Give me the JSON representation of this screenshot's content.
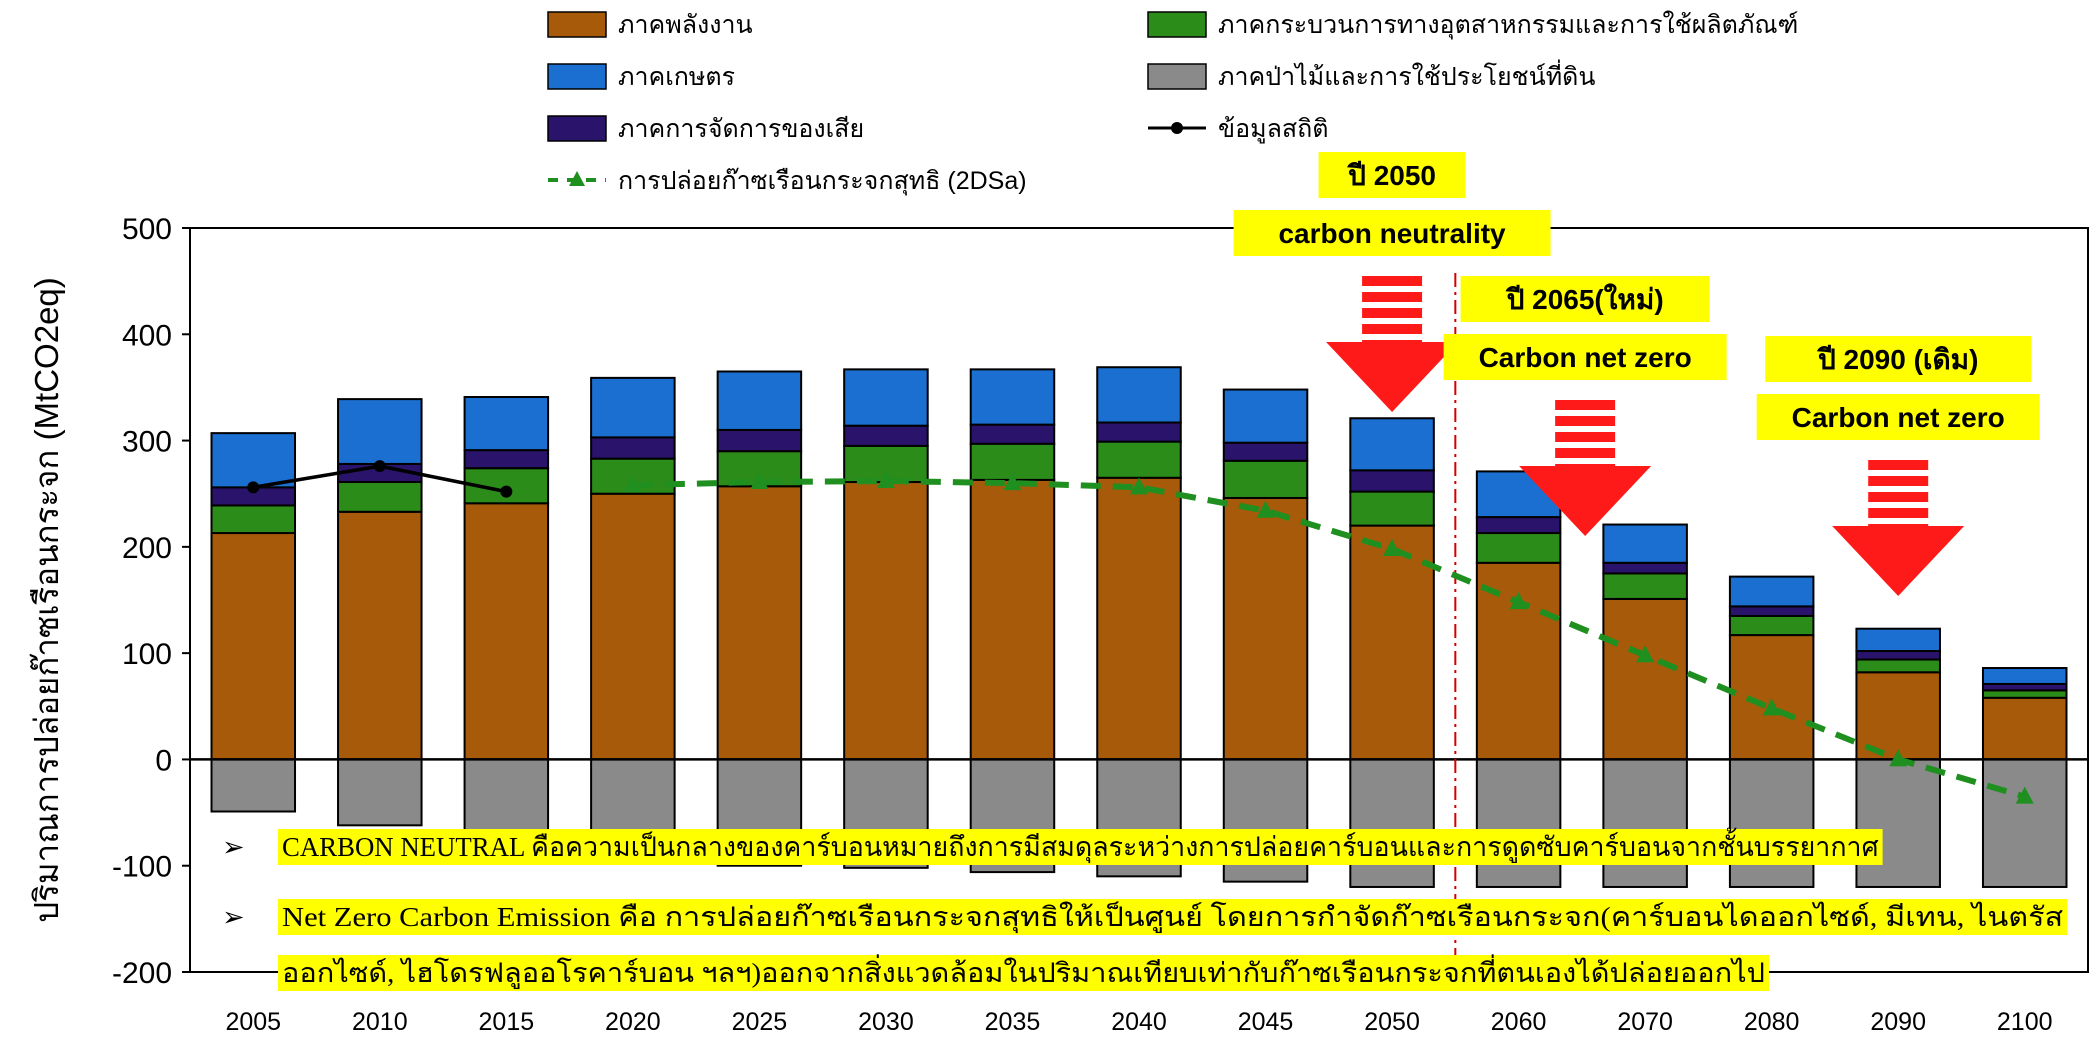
{
  "chart_data": {
    "type": "bar",
    "ylabel": "ปริมาณการปล่อยก๊าซเรือนกระจก (MtCO2eq)",
    "ylim": [
      -200,
      500
    ],
    "yticks": [
      500,
      400,
      300,
      200,
      100,
      0,
      -100,
      -200
    ],
    "categories": [
      "2005",
      "2010",
      "2015",
      "2020",
      "2025",
      "2030",
      "2035",
      "2040",
      "2045",
      "2050",
      "2060",
      "2070",
      "2080",
      "2090",
      "2100"
    ],
    "series": [
      {
        "name": "ภาคพลังงาน",
        "color": "#a65a0a",
        "values": [
          213,
          233,
          241,
          250,
          257,
          261,
          263,
          265,
          246,
          220,
          185,
          151,
          117,
          82,
          58
        ]
      },
      {
        "name": "ภาคกระบวนการทางอุตสาหกรรมและการใช้ผลิตภัณฑ์",
        "color": "#2c8c1a",
        "values": [
          26,
          28,
          33,
          33,
          33,
          34,
          34,
          34,
          35,
          32,
          28,
          24,
          18,
          12,
          7
        ]
      },
      {
        "name": "ภาคการจัดการของเสีย",
        "color": "#2a136b",
        "values": [
          17,
          17,
          17,
          20,
          20,
          19,
          18,
          18,
          17,
          20,
          15,
          10,
          9,
          8,
          6
        ]
      },
      {
        "name": "ภาคเกษตร",
        "color": "#1b6fd1",
        "values": [
          51,
          61,
          50,
          56,
          55,
          53,
          52,
          52,
          50,
          49,
          43,
          36,
          28,
          21,
          15
        ]
      },
      {
        "name": "ภาคป่าไม้และการใช้ประโยชน์ที่ดิน",
        "color": "#8a8a8a",
        "values": [
          -49,
          -62,
          -88,
          -95,
          -100,
          -102,
          -106,
          -110,
          -115,
          -120,
          -120,
          -120,
          -120,
          -120,
          -120
        ]
      }
    ],
    "lines": [
      {
        "name": "ข้อมูลสถิติ",
        "color": "#000000",
        "x": [
          "2005",
          "2010",
          "2015"
        ],
        "values": [
          256,
          276,
          252
        ]
      },
      {
        "name": "การปล่อยก๊าซเรือนกระจกสุทธิ (2DSa)",
        "color": "#1f8f1f",
        "x": [
          "2020",
          "2025",
          "2030",
          "2035",
          "2040",
          "2045",
          "2050",
          "2060",
          "2070",
          "2080",
          "2090",
          "2100"
        ],
        "values": [
          258,
          261,
          262,
          260,
          256,
          234,
          198,
          148,
          98,
          48,
          0,
          -35
        ]
      }
    ],
    "legend": [
      {
        "label": "ภาคพลังงาน",
        "kind": "box",
        "color": "#a65a0a"
      },
      {
        "label": "ภาคกระบวนการทางอุตสาหกรรมและการใช้ผลิตภัณฑ์",
        "kind": "box",
        "color": "#2c8c1a"
      },
      {
        "label": "ภาคเกษตร",
        "kind": "box",
        "color": "#1b6fd1"
      },
      {
        "label": "ภาคป่าไม้และการใช้ประโยชน์ที่ดิน",
        "kind": "box",
        "color": "#8a8a8a"
      },
      {
        "label": "ภาคการจัดการของเสีย",
        "kind": "box",
        "color": "#2a136b"
      },
      {
        "label": "ข้อมูลสถิติ",
        "kind": "line",
        "color": "#000000"
      },
      {
        "label": "การปล่อยก๊าซเรือนกระจกสุทธิ (2DSa)",
        "kind": "dashed",
        "color": "#1f8f1f"
      }
    ],
    "callouts": [
      {
        "lines": [
          "ปี 2050",
          "carbon neutrality"
        ],
        "at": "2050",
        "text_color": "#000000",
        "box_color": "#ffff00",
        "arrow_color": "#ff1a1a"
      },
      {
        "lines": [
          "ปี 2065(ใหม่)",
          "Carbon net zero"
        ],
        "at": "2070",
        "text_color": "#000000",
        "box_color": "#ffff00",
        "arrow_color": "#ff1a1a"
      },
      {
        "lines": [
          "ปี 2090 (เดิม)",
          "Carbon net zero"
        ],
        "at": "2090",
        "text_color": "#ff0000",
        "box_color": "#ffff00",
        "arrow_color": "#ff1a1a"
      }
    ],
    "divider": {
      "between": [
        "2050",
        "2060"
      ],
      "color": "#d40000"
    },
    "notes": [
      {
        "bullet": "➢",
        "lines": [
          "CARBON NEUTRAL คือความเป็นกลางของคาร์บอนหมายถึงการมีสมดุลระหว่างการปล่อยคาร์บอนและการดูดซับคาร์บอนจากชั้นบรรยากาศ"
        ]
      },
      {
        "bullet": "➢",
        "lines": [
          "Net Zero Carbon Emission คือ การปล่อยก๊าซเรือนกระจกสุทธิให้เป็นศูนย์ โดยการกำจัดก๊าซเรือนกระจก(คาร์บอนไดออกไซด์, มีเทน, ไนตรัส",
          "ออกไซด์, ไฮโดรฟลูออโรคาร์บอน ฯลฯ)ออกจากสิ่งแวดล้อมในปริมาณเทียบเท่ากับก๊าซเรือนกระจกที่ตนเองได้ปล่อยออกไป"
        ]
      }
    ],
    "note_highlight_color": "#ffff00"
  }
}
